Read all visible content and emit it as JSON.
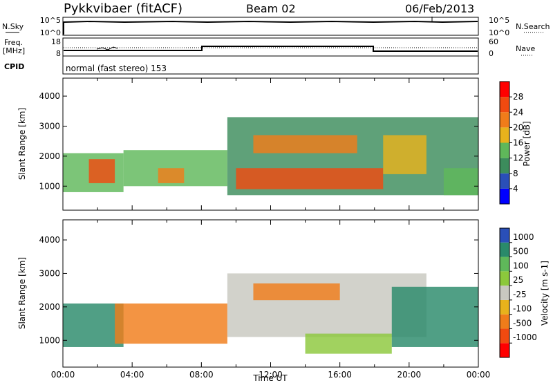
{
  "header": {
    "station": "Pykkvibaer (fitACF)",
    "beam": "Beam 02",
    "date": "06/Feb/2013"
  },
  "status_panels": {
    "nsky_label": "N.Sky",
    "nsky_ticks": [
      "10^5",
      "10^0"
    ],
    "nsearch_label": "N.Search",
    "freq_label_line1": "Freq.",
    "freq_label_line2": "[MHz]",
    "freq_ticks": [
      "18",
      "8"
    ],
    "nave_label": "Nave",
    "nave_ticks": [
      "60",
      "0"
    ],
    "cpid_label": "CPID",
    "cpid_value": "normal (fast stereo) 153"
  },
  "colors": {
    "power_scale": [
      "#0000ff",
      "#2a4fb8",
      "#3c8c5c",
      "#5fb85a",
      "#e8b21c",
      "#f07c1a",
      "#f04a10",
      "#ff0000"
    ],
    "velocity_scale": [
      "#ff0000",
      "#f04a10",
      "#f07c1a",
      "#e8b21c",
      "#c8c8c0",
      "#8cc83c",
      "#5fb85a",
      "#2a8a6a",
      "#2a4fb8"
    ],
    "ground_scatter": "#c8c8c0"
  },
  "chart_data": [
    {
      "type": "heatmap",
      "panel": "power",
      "ylabel": "Slant Range [km]",
      "xlabel": "",
      "y_ticks": [
        "1000",
        "2000",
        "3000",
        "4000"
      ],
      "ylim": [
        200,
        4600
      ],
      "xlim": [
        0,
        24
      ],
      "colorbar": {
        "label": "Power [dB]",
        "ticks": [
          "4",
          "8",
          "12",
          "16",
          "20",
          "24",
          "28"
        ],
        "range": [
          0,
          32
        ]
      },
      "regions": [
        {
          "t0": 0.0,
          "t1": 3.5,
          "r0": 800,
          "r1": 2100,
          "level": 3
        },
        {
          "t0": 1.5,
          "t1": 3.0,
          "r0": 1100,
          "r1": 1900,
          "level": 6
        },
        {
          "t0": 3.5,
          "t1": 9.5,
          "r0": 1000,
          "r1": 2200,
          "level": 3
        },
        {
          "t0": 5.5,
          "t1": 7.0,
          "r0": 1100,
          "r1": 1600,
          "level": 5
        },
        {
          "t0": 9.5,
          "t1": 24.0,
          "r0": 700,
          "r1": 3300,
          "level": 2
        },
        {
          "t0": 10.0,
          "t1": 18.5,
          "r0": 900,
          "r1": 1600,
          "level": 6
        },
        {
          "t0": 11.0,
          "t1": 17.0,
          "r0": 2100,
          "r1": 2700,
          "level": 5
        },
        {
          "t0": 18.5,
          "t1": 21.0,
          "r0": 1400,
          "r1": 2700,
          "level": 4
        },
        {
          "t0": 22.0,
          "t1": 24.0,
          "r0": 700,
          "r1": 1600,
          "level": 3
        }
      ]
    },
    {
      "type": "heatmap",
      "panel": "velocity",
      "ylabel": "Slant Range [km]",
      "xlabel": "Time UT",
      "x_ticks": [
        "00:00",
        "04:00",
        "08:00",
        "12:00",
        "16:00",
        "20:00",
        "00:00"
      ],
      "y_ticks": [
        "1000",
        "2000",
        "3000",
        "4000"
      ],
      "ylim": [
        200,
        4600
      ],
      "xlim": [
        0,
        24
      ],
      "colorbar": {
        "label": "Velocity [m s-1]",
        "ticks": [
          "1000",
          "500",
          "100",
          "25",
          "-25",
          "-100",
          "-500",
          "-1000"
        ]
      },
      "regions": [
        {
          "t0": 0.0,
          "t1": 3.5,
          "r0": 800,
          "r1": 2100,
          "level": 7
        },
        {
          "t0": 3.0,
          "t1": 9.5,
          "r0": 900,
          "r1": 2100,
          "level": 2
        },
        {
          "t0": 9.5,
          "t1": 21.0,
          "r0": 1100,
          "r1": 3000,
          "level": 4
        },
        {
          "t0": 11.0,
          "t1": 16.0,
          "r0": 2200,
          "r1": 2700,
          "level": 2
        },
        {
          "t0": 14.0,
          "t1": 19.0,
          "r0": 600,
          "r1": 1200,
          "level": 5
        },
        {
          "t0": 19.0,
          "t1": 24.0,
          "r0": 800,
          "r1": 2600,
          "level": 7
        }
      ]
    }
  ]
}
